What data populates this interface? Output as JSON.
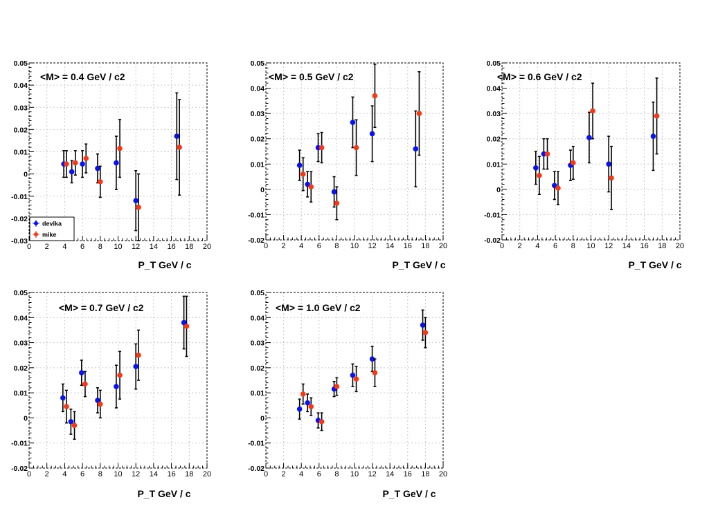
{
  "figure": {
    "legend": {
      "entries": [
        "devika",
        "mike"
      ],
      "placement": "bottom-left (first panel)"
    },
    "colors": {
      "devika": "#0a14e6",
      "mike": "#ee3b1c",
      "error_bar": "#000000",
      "grid": "#c8c8c8"
    }
  },
  "chart_data": [
    {
      "type": "scatter",
      "title": "<M> = 0.4 GeV / c2",
      "xlabel": "P_T GeV / c",
      "ylabel": "",
      "xlim": [
        0,
        20
      ],
      "ylim": [
        -0.03,
        0.05
      ],
      "yticks": [
        "-0.03",
        "-0.02",
        "-0.01",
        "0",
        "0.01",
        "0.02",
        "0.03",
        "0.04",
        "0.05"
      ],
      "xticks": [
        "0",
        "2",
        "4",
        "6",
        "8",
        "10",
        "12",
        "14",
        "16",
        "18",
        "20"
      ],
      "grid": true,
      "legend": true,
      "series": [
        {
          "name": "devika",
          "x": [
            3.9,
            4.8,
            6.0,
            7.7,
            9.8,
            12.0,
            16.6
          ],
          "y": [
            0.0045,
            0.001,
            0.0045,
            0.0025,
            0.005,
            -0.012,
            0.017
          ],
          "err": [
            0.006,
            0.005,
            0.006,
            0.0065,
            0.012,
            0.0135,
            0.0195
          ]
        },
        {
          "name": "mike",
          "x": [
            4.2,
            5.2,
            6.4,
            8.0,
            10.2,
            12.3,
            16.9
          ],
          "y": [
            0.0045,
            0.005,
            0.007,
            -0.0035,
            0.0115,
            -0.015,
            0.012
          ],
          "err": [
            0.006,
            0.0055,
            0.0065,
            0.007,
            0.013,
            0.015,
            0.0215
          ]
        }
      ]
    },
    {
      "type": "scatter",
      "title": "<M> = 0.5 GeV / c2",
      "xlabel": "P_T GeV / c",
      "ylabel": "",
      "xlim": [
        0,
        20
      ],
      "ylim": [
        -0.02,
        0.05
      ],
      "yticks": [
        "-0.02",
        "-0.01",
        "0",
        "0.01",
        "0.02",
        "0.03",
        "0.04",
        "0.05"
      ],
      "xticks": [
        "0",
        "2",
        "4",
        "6",
        "8",
        "10",
        "12",
        "14",
        "16",
        "18",
        "20"
      ],
      "grid": true,
      "legend": false,
      "series": [
        {
          "name": "devika",
          "x": [
            3.8,
            4.7,
            5.9,
            7.7,
            9.8,
            12.0,
            16.9
          ],
          "y": [
            0.0095,
            0.002,
            0.0165,
            -0.001,
            0.0265,
            0.022,
            0.016
          ],
          "err": [
            0.006,
            0.005,
            0.0055,
            0.006,
            0.01,
            0.011,
            0.015
          ]
        },
        {
          "name": "mike",
          "x": [
            4.2,
            5.1,
            6.3,
            8.0,
            10.2,
            12.3,
            17.3
          ],
          "y": [
            0.006,
            0.001,
            0.0165,
            -0.0055,
            0.0165,
            0.037,
            0.03
          ],
          "err": [
            0.0065,
            0.006,
            0.006,
            0.0065,
            0.011,
            0.0125,
            0.0165
          ]
        }
      ]
    },
    {
      "type": "scatter",
      "title": "<M> = 0.6 GeV / c2",
      "xlabel": "P_T GeV / c",
      "ylabel": "",
      "xlim": [
        0,
        20
      ],
      "ylim": [
        -0.02,
        0.05
      ],
      "yticks": [
        "-0.02",
        "-0.01",
        "0",
        "0.01",
        "0.02",
        "0.03",
        "0.04",
        "0.05"
      ],
      "xticks": [
        "0",
        "2",
        "4",
        "6",
        "8",
        "10",
        "12",
        "14",
        "16",
        "18",
        "20"
      ],
      "grid": true,
      "legend": false,
      "series": [
        {
          "name": "devika",
          "x": [
            3.8,
            4.7,
            5.9,
            7.7,
            9.8,
            12.0,
            17.0
          ],
          "y": [
            0.0085,
            0.014,
            0.0015,
            0.0095,
            0.0205,
            0.01,
            0.021
          ],
          "err": [
            0.0065,
            0.006,
            0.0055,
            0.006,
            0.01,
            0.011,
            0.0135
          ]
        },
        {
          "name": "mike",
          "x": [
            4.2,
            5.1,
            6.3,
            8.0,
            10.2,
            12.3,
            17.4
          ],
          "y": [
            0.0055,
            0.014,
            0.0005,
            0.0105,
            0.031,
            0.0045,
            0.029
          ],
          "err": [
            0.0075,
            0.006,
            0.0065,
            0.0065,
            0.011,
            0.0125,
            0.015
          ]
        }
      ]
    },
    {
      "type": "scatter",
      "title": "<M> = 0.7 GeV / c2",
      "xlabel": "P_T GeV / c",
      "ylabel": "",
      "xlim": [
        0,
        20
      ],
      "ylim": [
        -0.02,
        0.05
      ],
      "yticks": [
        "-0.02",
        "-0.01",
        "0",
        "0.01",
        "0.02",
        "0.03",
        "0.04",
        "0.05"
      ],
      "xticks": [
        "0",
        "2",
        "4",
        "6",
        "8",
        "10",
        "12",
        "14",
        "16",
        "18",
        "20"
      ],
      "grid": true,
      "legend": false,
      "series": [
        {
          "name": "devika",
          "x": [
            3.8,
            4.7,
            5.9,
            7.7,
            9.8,
            12.0,
            17.4
          ],
          "y": [
            0.008,
            -0.0015,
            0.018,
            0.007,
            0.0125,
            0.0205,
            0.038
          ],
          "err": [
            0.0055,
            0.005,
            0.005,
            0.005,
            0.0085,
            0.009,
            0.0105
          ]
        },
        {
          "name": "mike",
          "x": [
            4.2,
            5.1,
            6.3,
            8.0,
            10.2,
            12.3,
            17.7
          ],
          "y": [
            0.0045,
            -0.003,
            0.0135,
            0.0055,
            0.017,
            0.025,
            0.0365
          ],
          "err": [
            0.0065,
            0.0055,
            0.005,
            0.0055,
            0.0095,
            0.01,
            0.012
          ]
        }
      ]
    },
    {
      "type": "scatter",
      "title": "<M> = 1.0 GeV / c2",
      "xlabel": "P_T GeV / c",
      "ylabel": "",
      "xlim": [
        0,
        20
      ],
      "ylim": [
        -0.02,
        0.05
      ],
      "yticks": [
        "-0.02",
        "-0.01",
        "0",
        "0.01",
        "0.02",
        "0.03",
        "0.04",
        "0.05"
      ],
      "xticks": [
        "0",
        "2",
        "4",
        "6",
        "8",
        "10",
        "12",
        "14",
        "16",
        "18",
        "20"
      ],
      "grid": true,
      "legend": false,
      "series": [
        {
          "name": "devika",
          "x": [
            3.8,
            4.7,
            5.9,
            7.7,
            9.8,
            12.0,
            17.7
          ],
          "y": [
            0.0035,
            0.006,
            -0.001,
            0.0115,
            0.017,
            0.0235,
            0.037
          ],
          "err": [
            0.004,
            0.0035,
            0.003,
            0.003,
            0.0045,
            0.005,
            0.006
          ]
        },
        {
          "name": "mike",
          "x": [
            4.2,
            5.1,
            6.3,
            8.0,
            10.2,
            12.3,
            18.0
          ],
          "y": [
            0.0095,
            0.0045,
            -0.0015,
            0.0125,
            0.0155,
            0.018,
            0.034
          ],
          "err": [
            0.004,
            0.0035,
            0.0035,
            0.0035,
            0.005,
            0.0055,
            0.006
          ]
        }
      ]
    }
  ]
}
